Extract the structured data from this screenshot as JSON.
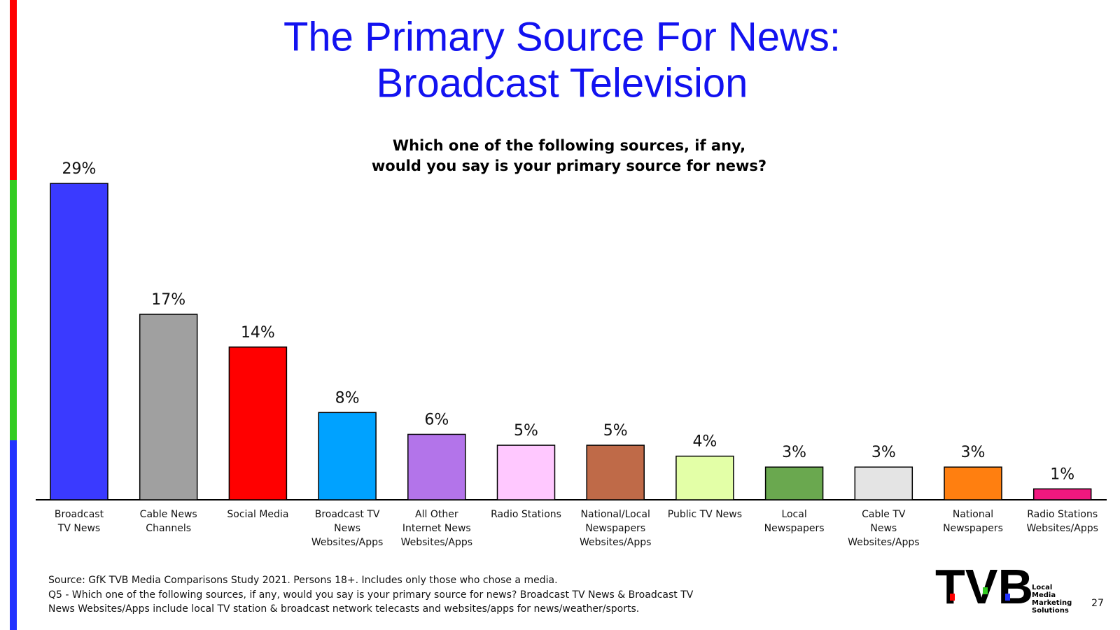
{
  "chart_data": {
    "type": "bar",
    "title": [
      "The Primary Source For News:",
      "Broadcast Television"
    ],
    "subtitle": [
      "Which one of the following sources, if any,",
      "would you say is your primary source for news?"
    ],
    "categories": [
      "Broadcast\nTV News",
      "Cable News\nChannels",
      "Social Media",
      "Broadcast TV\nNews\nWebsites/Apps",
      "All Other\nInternet News\nWebsites/Apps",
      "Radio Stations",
      "National/Local\nNewspapers\nWebsites/Apps",
      "Public TV News",
      "Local\nNewspapers",
      "Cable TV\nNews\nWebsites/Apps",
      "National\nNewspapers",
      "Radio Stations\nWebsites/Apps"
    ],
    "values": [
      29,
      17,
      14,
      8,
      6,
      5,
      5,
      4,
      3,
      3,
      3,
      1
    ],
    "value_labels": [
      "29%",
      "17%",
      "14%",
      "8%",
      "6%",
      "5%",
      "5%",
      "4%",
      "3%",
      "3%",
      "3%",
      "1%"
    ],
    "colors": [
      "#3a3aff",
      "#a0a0a0",
      "#ff0000",
      "#00a2ff",
      "#b374ea",
      "#ffc8ff",
      "#bf6a48",
      "#e3ffa7",
      "#6aa84f",
      "#e4e4e4",
      "#ff7f10",
      "#f0187f"
    ]
  },
  "footer": {
    "notes": [
      "Source: GfK TVB Media Comparisons Study 2021. Persons 18+. Includes only those who chose a media.",
      "Q5 - Which one of the following sources, if any, would you say is your primary source for news? Broadcast TV News & Broadcast TV",
      "News Websites/Apps include local TV station & broadcast network telecasts and websites/apps for news/weather/sports."
    ],
    "logo": "TVB",
    "tagline": [
      "Local",
      "Media",
      "Marketing",
      "Solutions"
    ],
    "page": "27"
  }
}
